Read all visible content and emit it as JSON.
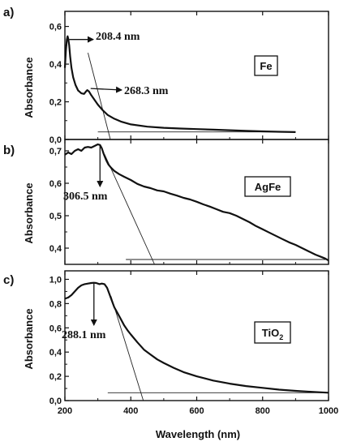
{
  "figure": {
    "xlabel": "Wavelength (nm)"
  },
  "chart_data": [
    {
      "type": "line",
      "panel_label": "a)",
      "legend": "Fe",
      "ylabel": "Absorbance",
      "xlim": [
        200,
        1000
      ],
      "ylim": [
        0,
        0.68
      ],
      "y_ticks": [
        "0,0",
        "0,2",
        "0,4",
        "0,6"
      ],
      "y_tick_values": [
        0,
        0.2,
        0.4,
        0.6
      ],
      "x": [
        200,
        203,
        206,
        208,
        210,
        213,
        216,
        220,
        225,
        232,
        240,
        250,
        258,
        264,
        268,
        273,
        280,
        290,
        300,
        315,
        330,
        350,
        370,
        400,
        450,
        500,
        550,
        600,
        650,
        700,
        750,
        800,
        850,
        900
      ],
      "y": [
        0.38,
        0.47,
        0.53,
        0.548,
        0.535,
        0.5,
        0.44,
        0.38,
        0.33,
        0.29,
        0.26,
        0.245,
        0.242,
        0.255,
        0.262,
        0.255,
        0.235,
        0.21,
        0.185,
        0.155,
        0.13,
        0.11,
        0.095,
        0.08,
        0.068,
        0.062,
        0.058,
        0.055,
        0.052,
        0.049,
        0.046,
        0.043,
        0.041,
        0.039
      ],
      "tangent": {
        "x1": 270,
        "y1": 0.46,
        "x2": 338,
        "y2": 0.0
      },
      "baseline": {
        "x1": 300,
        "x2": 900,
        "y": 0.04
      },
      "annotations": [
        {
          "text": "208.4 nm",
          "x": 208.4,
          "y": 0.548
        },
        {
          "text": "268.3 nm",
          "x": 268.3,
          "y": 0.262
        }
      ]
    },
    {
      "type": "line",
      "panel_label": "b)",
      "legend": "AgFe",
      "ylabel": "Absorbance",
      "xlim": [
        200,
        1000
      ],
      "ylim": [
        0.35,
        0.735
      ],
      "y_ticks": [
        "0,4",
        "0,5",
        "0,6",
        "0,7"
      ],
      "y_tick_values": [
        0.4,
        0.5,
        0.6,
        0.7
      ],
      "x": [
        200,
        210,
        220,
        230,
        240,
        250,
        260,
        270,
        280,
        290,
        300,
        306.5,
        312,
        318,
        325,
        332,
        340,
        350,
        365,
        380,
        400,
        420,
        440,
        460,
        480,
        500,
        520,
        540,
        560,
        580,
        600,
        620,
        640,
        660,
        680,
        700,
        720,
        740,
        760,
        780,
        800,
        820,
        840,
        860,
        880,
        900,
        920,
        940,
        960,
        980,
        990,
        1000
      ],
      "y": [
        0.688,
        0.695,
        0.69,
        0.7,
        0.705,
        0.7,
        0.71,
        0.712,
        0.71,
        0.715,
        0.72,
        0.718,
        0.708,
        0.69,
        0.672,
        0.658,
        0.648,
        0.638,
        0.628,
        0.62,
        0.61,
        0.598,
        0.59,
        0.585,
        0.578,
        0.575,
        0.568,
        0.562,
        0.555,
        0.55,
        0.543,
        0.535,
        0.528,
        0.52,
        0.512,
        0.508,
        0.5,
        0.49,
        0.48,
        0.468,
        0.458,
        0.448,
        0.438,
        0.428,
        0.418,
        0.41,
        0.4,
        0.39,
        0.38,
        0.372,
        0.368,
        0.362
      ],
      "tangent": {
        "x1": 320,
        "y1": 0.69,
        "x2": 472,
        "y2": 0.333
      },
      "baseline": {
        "x1": 385,
        "x2": 1000,
        "y": 0.365
      },
      "annotations": [
        {
          "text": "306.5 nm",
          "x": 306.5,
          "y": 0.718
        }
      ]
    },
    {
      "type": "line",
      "panel_label": "c)",
      "legend": "TiO2",
      "legend_parts": {
        "base": "TiO",
        "subscript": "2"
      },
      "ylabel": "Absorbance",
      "xlim": [
        200,
        1000
      ],
      "ylim": [
        0,
        1.07
      ],
      "y_ticks": [
        "0,0",
        "0,2",
        "0,4",
        "0,6",
        "0,8",
        "1,0"
      ],
      "y_tick_values": [
        0,
        0.2,
        0.4,
        0.6,
        0.8,
        1.0
      ],
      "x": [
        200,
        210,
        220,
        230,
        240,
        250,
        260,
        270,
        280,
        288.1,
        295,
        305,
        312,
        320,
        328,
        335,
        343,
        350,
        360,
        370,
        380,
        390,
        400,
        420,
        440,
        460,
        480,
        500,
        530,
        560,
        600,
        650,
        700,
        750,
        800,
        850,
        900,
        950,
        1000
      ],
      "y": [
        0.84,
        0.85,
        0.87,
        0.9,
        0.93,
        0.95,
        0.96,
        0.965,
        0.97,
        0.972,
        0.97,
        0.96,
        0.965,
        0.96,
        0.93,
        0.88,
        0.82,
        0.77,
        0.72,
        0.67,
        0.62,
        0.58,
        0.545,
        0.48,
        0.42,
        0.38,
        0.34,
        0.31,
        0.27,
        0.235,
        0.2,
        0.165,
        0.14,
        0.12,
        0.105,
        0.09,
        0.08,
        0.072,
        0.065
      ],
      "tangent": {
        "x1": 340,
        "y1": 0.86,
        "x2": 438,
        "y2": 0.0
      },
      "baseline": {
        "x1": 330,
        "x2": 1000,
        "y": 0.065
      },
      "annotations": [
        {
          "text": "288.1 nm",
          "x": 288.1,
          "y": 0.972
        }
      ]
    }
  ]
}
